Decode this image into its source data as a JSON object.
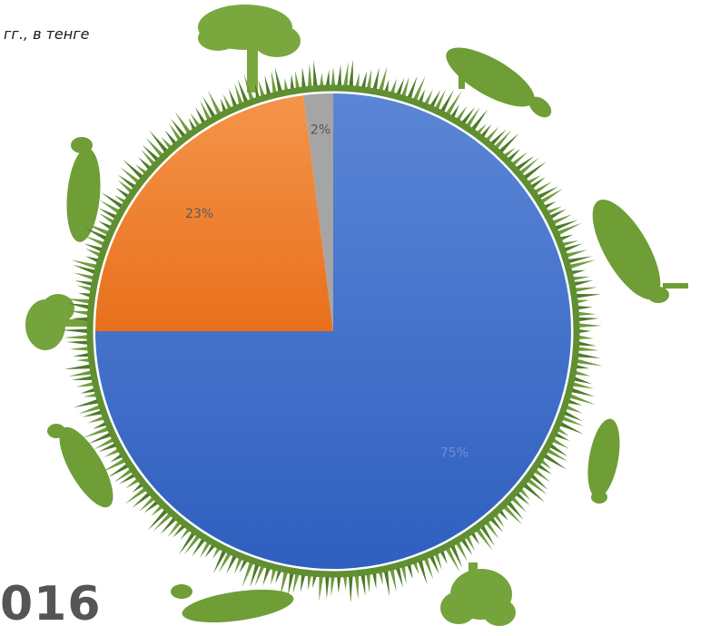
{
  "header": {
    "subtitle": "гг., в тенге"
  },
  "footer": {
    "year_fragment": "016"
  },
  "colors": {
    "grass": "#6f9b3c",
    "grass_dark": "#4f7a2a",
    "silhouette": "#6a9a35",
    "slice_blue": "#3a6fcb",
    "slice_orange": "#ef7a22",
    "slice_gray": "#a5a5a5"
  },
  "chart_data": {
    "type": "pie",
    "title": "",
    "start_angle": "12 o'clock, clockwise",
    "slices": [
      {
        "label": "75%",
        "value": 75,
        "color": "#3a6fcb",
        "label_color": "#6f8fcf"
      },
      {
        "label": "23%",
        "value": 23,
        "color": "#ef7a22",
        "label_color": "#5a5a5a"
      },
      {
        "label": "2%",
        "value": 2,
        "color": "#a5a5a5",
        "label_color": "#555555"
      }
    ]
  }
}
